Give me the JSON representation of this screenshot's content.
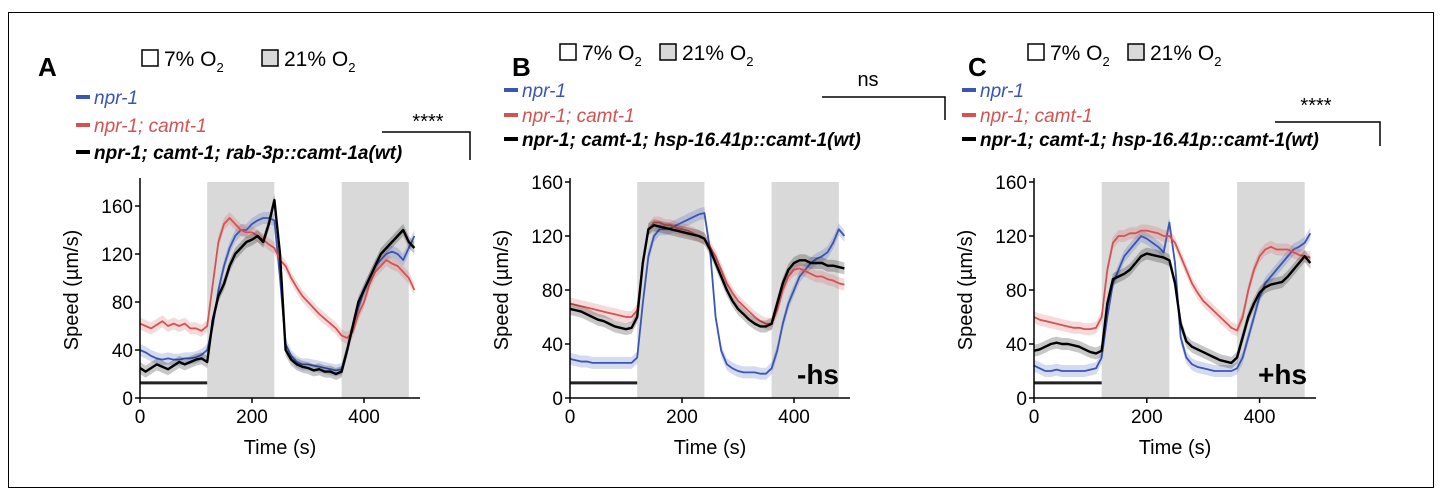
{
  "oxygen": {
    "low": "7% O",
    "high": "21% O",
    "sub": "2"
  },
  "shared": {
    "xlabel": "Time (s)",
    "ylabel": "Speed (µm/s)"
  },
  "colors": {
    "npr1": "#3a56b5",
    "camt1": "#d65252",
    "rescue": "#000000",
    "shade": "#d9d9d9"
  },
  "chart_data": [
    {
      "type": "line",
      "panel": "A",
      "xlabel": "Time (s)",
      "ylabel": "Speed (µm/s)",
      "xlim": [
        0,
        500
      ],
      "ylim": [
        0,
        180
      ],
      "xticks": [
        0,
        200,
        400
      ],
      "yticks": [
        0,
        40,
        80,
        120,
        160
      ],
      "shaded_x": [
        [
          120,
          240
        ],
        [
          360,
          480
        ]
      ],
      "baseline_bar": [
        0,
        120
      ],
      "significance": "****",
      "annotation": "",
      "series": [
        {
          "name": "npr-1",
          "color": "#3a56b5",
          "x": [
            0,
            10,
            20,
            30,
            40,
            50,
            60,
            70,
            80,
            90,
            100,
            110,
            120,
            130,
            140,
            150,
            160,
            170,
            180,
            190,
            200,
            210,
            220,
            230,
            240,
            250,
            260,
            270,
            280,
            290,
            300,
            310,
            320,
            330,
            340,
            350,
            360,
            370,
            380,
            390,
            400,
            410,
            420,
            430,
            440,
            450,
            460,
            470,
            480,
            490
          ],
          "y": [
            40,
            38,
            35,
            33,
            32,
            33,
            32,
            32,
            33,
            33,
            34,
            36,
            40,
            60,
            90,
            110,
            125,
            135,
            140,
            140,
            145,
            148,
            150,
            150,
            148,
            100,
            45,
            35,
            30,
            28,
            28,
            27,
            26,
            25,
            24,
            23,
            24,
            40,
            60,
            75,
            90,
            100,
            110,
            115,
            120,
            122,
            120,
            115,
            125,
            135
          ]
        },
        {
          "name": "npr-1; camt-1",
          "color": "#d65252",
          "x": [
            0,
            10,
            20,
            30,
            40,
            50,
            60,
            70,
            80,
            90,
            100,
            110,
            120,
            130,
            140,
            150,
            160,
            170,
            180,
            190,
            200,
            210,
            220,
            230,
            240,
            250,
            260,
            270,
            280,
            290,
            300,
            310,
            320,
            330,
            340,
            350,
            360,
            370,
            380,
            390,
            400,
            410,
            420,
            430,
            440,
            450,
            460,
            470,
            480,
            490
          ],
          "y": [
            62,
            60,
            58,
            61,
            64,
            60,
            62,
            60,
            62,
            58,
            58,
            56,
            60,
            95,
            130,
            145,
            150,
            145,
            140,
            138,
            138,
            135,
            132,
            128,
            125,
            115,
            110,
            100,
            92,
            85,
            80,
            75,
            70,
            66,
            62,
            58,
            52,
            50,
            55,
            70,
            80,
            95,
            105,
            110,
            115,
            112,
            110,
            105,
            100,
            90
          ]
        },
        {
          "name": "npr-1; camt-1; rab-3p::camt-1a(wt)",
          "color": "#000000",
          "x": [
            0,
            10,
            20,
            30,
            40,
            50,
            60,
            70,
            80,
            90,
            100,
            110,
            120,
            130,
            140,
            150,
            160,
            170,
            180,
            190,
            200,
            210,
            220,
            230,
            240,
            250,
            260,
            270,
            280,
            290,
            300,
            310,
            320,
            330,
            340,
            350,
            360,
            370,
            380,
            390,
            400,
            410,
            420,
            430,
            440,
            450,
            460,
            470,
            480,
            490
          ],
          "y": [
            25,
            22,
            25,
            28,
            26,
            24,
            27,
            30,
            28,
            30,
            32,
            33,
            30,
            65,
            85,
            95,
            110,
            120,
            125,
            130,
            132,
            135,
            130,
            145,
            165,
            120,
            40,
            32,
            28,
            26,
            25,
            23,
            24,
            22,
            22,
            20,
            22,
            40,
            60,
            80,
            90,
            100,
            110,
            120,
            125,
            130,
            135,
            140,
            130,
            125
          ]
        }
      ]
    },
    {
      "type": "line",
      "panel": "B",
      "xlabel": "Time (s)",
      "ylabel": "Speed (µm/s)",
      "xlim": [
        0,
        500
      ],
      "ylim": [
        0,
        160
      ],
      "xticks": [
        0,
        200,
        400
      ],
      "yticks": [
        0,
        40,
        80,
        120,
        160
      ],
      "shaded_x": [
        [
          120,
          240
        ],
        [
          360,
          480
        ]
      ],
      "baseline_bar": [
        0,
        120
      ],
      "significance": "ns",
      "annotation": "-hs",
      "series": [
        {
          "name": "npr-1",
          "color": "#3a56b5",
          "x": [
            0,
            10,
            20,
            30,
            40,
            50,
            60,
            70,
            80,
            90,
            100,
            110,
            120,
            130,
            140,
            150,
            160,
            170,
            180,
            190,
            200,
            210,
            220,
            230,
            240,
            250,
            260,
            270,
            280,
            290,
            300,
            310,
            320,
            330,
            340,
            350,
            360,
            370,
            380,
            390,
            400,
            410,
            420,
            430,
            440,
            450,
            460,
            470,
            480,
            490
          ],
          "y": [
            29,
            28,
            27,
            27,
            26,
            26,
            26,
            26,
            26,
            26,
            26,
            26,
            30,
            70,
            105,
            120,
            125,
            125,
            126,
            128,
            130,
            132,
            134,
            136,
            137,
            110,
            60,
            35,
            25,
            22,
            20,
            19,
            19,
            19,
            18,
            18,
            22,
            35,
            55,
            70,
            80,
            90,
            95,
            100,
            103,
            105,
            108,
            115,
            125,
            120
          ]
        },
        {
          "name": "npr-1; camt-1",
          "color": "#d65252",
          "x": [
            0,
            10,
            20,
            30,
            40,
            50,
            60,
            70,
            80,
            90,
            100,
            110,
            120,
            130,
            140,
            150,
            160,
            170,
            180,
            190,
            200,
            210,
            220,
            230,
            240,
            250,
            260,
            270,
            280,
            290,
            300,
            310,
            320,
            330,
            340,
            350,
            360,
            370,
            380,
            390,
            400,
            410,
            420,
            430,
            440,
            450,
            460,
            470,
            480,
            490
          ],
          "y": [
            70,
            69,
            68,
            67,
            66,
            65,
            64,
            63,
            62,
            61,
            60,
            60,
            65,
            100,
            125,
            130,
            130,
            128,
            128,
            126,
            125,
            124,
            122,
            120,
            118,
            112,
            105,
            95,
            85,
            78,
            72,
            68,
            64,
            60,
            57,
            55,
            55,
            65,
            80,
            90,
            95,
            96,
            94,
            92,
            90,
            90,
            88,
            87,
            85,
            84
          ]
        },
        {
          "name": "npr-1; camt-1; hsp-16.41p::camt-1(wt)",
          "color": "#000000",
          "x": [
            0,
            10,
            20,
            30,
            40,
            50,
            60,
            70,
            80,
            90,
            100,
            110,
            120,
            130,
            140,
            150,
            160,
            170,
            180,
            190,
            200,
            210,
            220,
            230,
            240,
            250,
            260,
            270,
            280,
            290,
            300,
            310,
            320,
            330,
            340,
            350,
            360,
            370,
            380,
            390,
            400,
            410,
            420,
            430,
            440,
            450,
            460,
            470,
            480,
            490
          ],
          "y": [
            66,
            65,
            64,
            62,
            60,
            58,
            57,
            55,
            53,
            52,
            51,
            52,
            60,
            100,
            125,
            128,
            127,
            126,
            125,
            124,
            123,
            122,
            121,
            120,
            118,
            110,
            100,
            90,
            80,
            72,
            66,
            62,
            58,
            55,
            53,
            53,
            55,
            70,
            85,
            95,
            100,
            102,
            102,
            100,
            100,
            100,
            98,
            98,
            97,
            96
          ]
        }
      ]
    },
    {
      "type": "line",
      "panel": "C",
      "xlabel": "Time (s)",
      "ylabel": "Speed (µm/s)",
      "xlim": [
        0,
        500
      ],
      "ylim": [
        0,
        160
      ],
      "xticks": [
        0,
        200,
        400
      ],
      "yticks": [
        0,
        40,
        80,
        120,
        160
      ],
      "shaded_x": [
        [
          120,
          240
        ],
        [
          360,
          480
        ]
      ],
      "baseline_bar": [
        0,
        120
      ],
      "significance": "****",
      "annotation": "+hs",
      "series": [
        {
          "name": "npr-1",
          "color": "#3a56b5",
          "x": [
            0,
            10,
            20,
            30,
            40,
            50,
            60,
            70,
            80,
            90,
            100,
            110,
            120,
            130,
            140,
            150,
            160,
            170,
            180,
            190,
            200,
            210,
            220,
            230,
            240,
            250,
            260,
            270,
            280,
            290,
            300,
            310,
            320,
            330,
            340,
            350,
            360,
            370,
            380,
            390,
            400,
            410,
            420,
            430,
            440,
            450,
            460,
            470,
            480,
            490
          ],
          "y": [
            24,
            22,
            20,
            20,
            21,
            20,
            20,
            20,
            20,
            20,
            21,
            22,
            30,
            60,
            85,
            95,
            105,
            110,
            115,
            120,
            118,
            115,
            112,
            108,
            130,
            100,
            45,
            30,
            25,
            23,
            22,
            21,
            20,
            20,
            20,
            20,
            22,
            30,
            45,
            60,
            75,
            85,
            90,
            95,
            100,
            105,
            110,
            112,
            115,
            122
          ]
        },
        {
          "name": "npr-1; camt-1",
          "color": "#d65252",
          "x": [
            0,
            10,
            20,
            30,
            40,
            50,
            60,
            70,
            80,
            90,
            100,
            110,
            120,
            130,
            140,
            150,
            160,
            170,
            180,
            190,
            200,
            210,
            220,
            230,
            240,
            250,
            260,
            270,
            280,
            290,
            300,
            310,
            320,
            330,
            340,
            350,
            360,
            370,
            380,
            390,
            400,
            410,
            420,
            430,
            440,
            450,
            460,
            470,
            480,
            490
          ],
          "y": [
            60,
            58,
            57,
            56,
            55,
            54,
            53,
            52,
            52,
            51,
            51,
            52,
            60,
            95,
            115,
            120,
            120,
            122,
            122,
            124,
            124,
            123,
            122,
            120,
            120,
            115,
            105,
            95,
            85,
            78,
            72,
            68,
            64,
            60,
            56,
            52,
            50,
            60,
            80,
            95,
            105,
            110,
            112,
            110,
            110,
            110,
            108,
            106,
            105,
            104
          ]
        },
        {
          "name": "npr-1; camt-1; hsp-16.41p::camt-1(wt)",
          "color": "#000000",
          "x": [
            0,
            10,
            20,
            30,
            40,
            50,
            60,
            70,
            80,
            90,
            100,
            110,
            120,
            130,
            140,
            150,
            160,
            170,
            180,
            190,
            200,
            210,
            220,
            230,
            240,
            250,
            260,
            270,
            280,
            290,
            300,
            310,
            320,
            330,
            340,
            350,
            360,
            370,
            380,
            390,
            400,
            410,
            420,
            430,
            440,
            450,
            460,
            470,
            480,
            490
          ],
          "y": [
            35,
            36,
            38,
            40,
            41,
            40,
            40,
            39,
            38,
            36,
            34,
            33,
            35,
            70,
            88,
            90,
            92,
            95,
            100,
            105,
            107,
            106,
            105,
            104,
            102,
            85,
            55,
            42,
            38,
            36,
            34,
            32,
            30,
            28,
            27,
            26,
            30,
            45,
            60,
            70,
            78,
            82,
            84,
            85,
            86,
            90,
            95,
            100,
            105,
            100
          ]
        }
      ]
    }
  ]
}
